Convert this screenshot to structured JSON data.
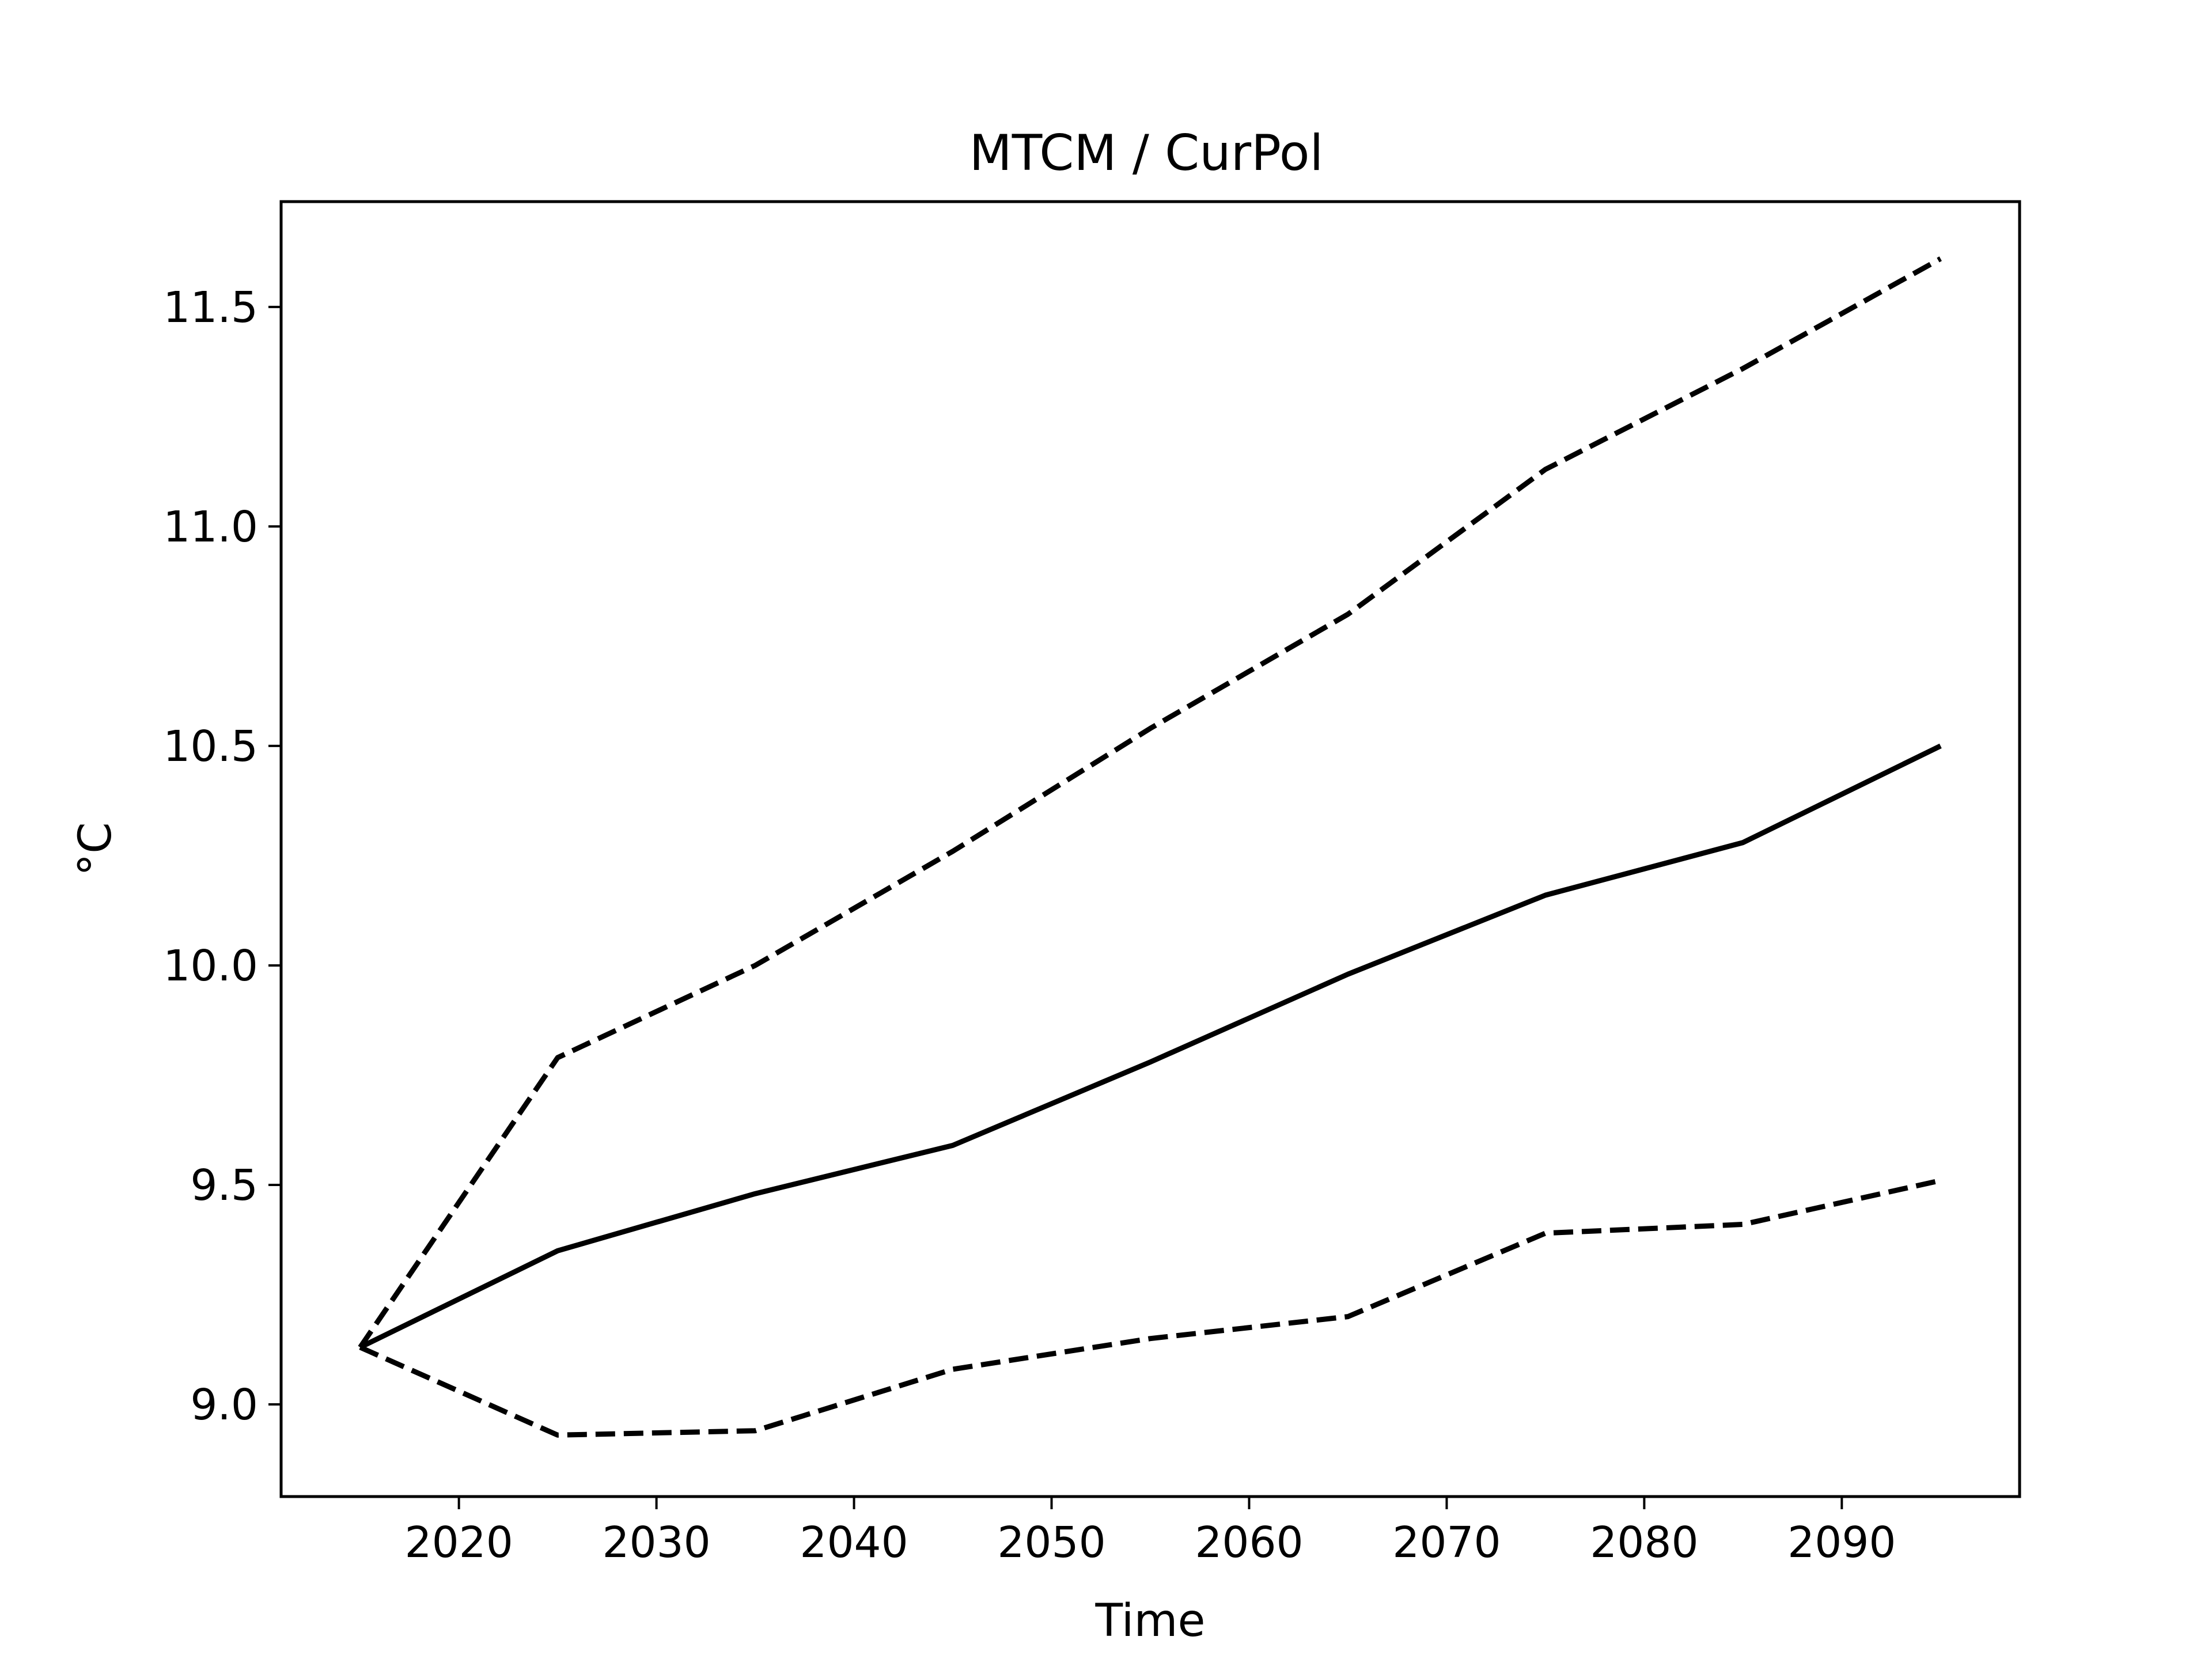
{
  "chart_data": {
    "type": "line",
    "title": "MTCM / CurPol",
    "xlabel": "Time",
    "ylabel": "°C",
    "xlim": [
      2011,
      2099
    ],
    "ylim": [
      8.79,
      11.74
    ],
    "xticks": [
      2020,
      2030,
      2040,
      2050,
      2060,
      2070,
      2080,
      2090
    ],
    "yticks": [
      9.0,
      9.5,
      10.0,
      10.5,
      11.0,
      11.5
    ],
    "xtick_labels": [
      "2020",
      "2030",
      "2040",
      "2050",
      "2060",
      "2070",
      "2080",
      "2090"
    ],
    "ytick_labels": [
      "9.0",
      "9.5",
      "10.0",
      "10.5",
      "11.0",
      "11.5"
    ],
    "grid": false,
    "x": [
      2015,
      2025,
      2035,
      2045,
      2055,
      2065,
      2075,
      2085,
      2095
    ],
    "series": [
      {
        "style": "solid",
        "values": [
          9.13,
          9.35,
          9.48,
          9.59,
          9.78,
          9.98,
          10.16,
          10.28,
          10.5
        ]
      },
      {
        "style": "dashed",
        "values": [
          9.13,
          9.79,
          10.0,
          10.26,
          10.54,
          10.8,
          11.13,
          11.36,
          11.61
        ]
      },
      {
        "style": "dashed",
        "values": [
          9.13,
          8.93,
          8.94,
          9.08,
          9.15,
          9.2,
          9.39,
          9.41,
          9.51
        ]
      }
    ],
    "line_color": "#000000"
  }
}
